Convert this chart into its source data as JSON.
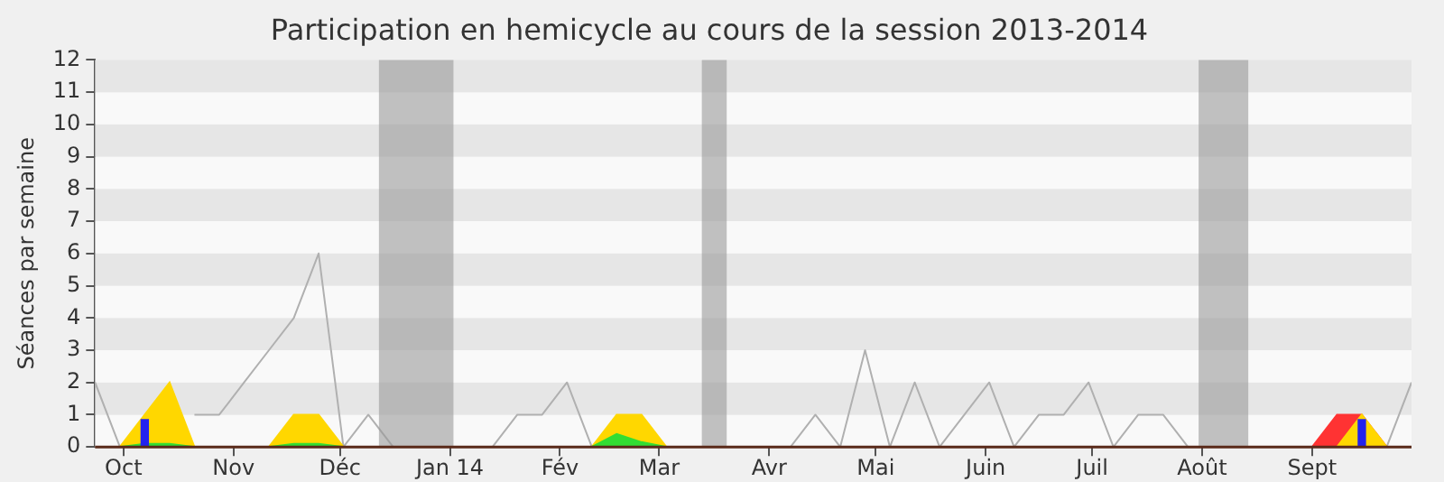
{
  "chart_data": {
    "type": "line",
    "title": "Participation en hemicycle au cours de la session 2013-2014",
    "ylabel": "Séances par semaine",
    "x": [
      "2013-09-23",
      "2013-09-30",
      "2013-10-07",
      "2013-10-14",
      "2013-10-21",
      "2013-10-28",
      "2013-11-04",
      "2013-11-11",
      "2013-11-18",
      "2013-11-25",
      "2013-12-02",
      "2013-12-09",
      "2013-12-16",
      "2013-12-23",
      "2013-12-30",
      "2014-01-06",
      "2014-01-13",
      "2014-01-20",
      "2014-01-27",
      "2014-02-03",
      "2014-02-10",
      "2014-02-17",
      "2014-02-24",
      "2014-03-03",
      "2014-03-10",
      "2014-03-17",
      "2014-03-24",
      "2014-03-31",
      "2014-04-07",
      "2014-04-14",
      "2014-04-21",
      "2014-04-28",
      "2014-05-05",
      "2014-05-12",
      "2014-05-19",
      "2014-05-26",
      "2014-06-02",
      "2014-06-09",
      "2014-06-16",
      "2014-06-23",
      "2014-06-30",
      "2014-07-07",
      "2014-07-14",
      "2014-07-21",
      "2014-07-28",
      "2014-08-04",
      "2014-08-11",
      "2014-08-18",
      "2014-08-25",
      "2014-09-01",
      "2014-09-08",
      "2014-09-15",
      "2014-09-22",
      "2014-09-29"
    ],
    "series": [
      {
        "color": "#b0b0b0",
        "values": [
          2,
          0,
          null,
          null,
          1,
          1,
          2,
          3,
          4,
          6,
          0,
          1,
          0,
          0,
          0,
          0,
          0,
          1,
          1,
          2,
          0,
          null,
          null,
          0,
          0,
          0,
          0,
          0,
          0,
          1,
          0,
          3,
          0,
          2,
          0,
          1,
          2,
          0,
          1,
          1,
          2,
          0,
          1,
          1,
          0,
          0,
          0,
          0,
          0,
          0,
          null,
          null,
          0,
          2
        ]
      },
      {
        "type": "area",
        "color": "#ff3333",
        "values": [
          null,
          null,
          null,
          null,
          null,
          null,
          null,
          null,
          null,
          null,
          null,
          null,
          null,
          null,
          null,
          null,
          null,
          null,
          null,
          null,
          null,
          null,
          null,
          null,
          null,
          null,
          null,
          null,
          null,
          null,
          null,
          null,
          null,
          null,
          null,
          null,
          null,
          null,
          null,
          null,
          null,
          null,
          null,
          null,
          null,
          null,
          null,
          null,
          null,
          0,
          1,
          1,
          0,
          null
        ]
      },
      {
        "type": "area",
        "color": "#ffd700",
        "values": [
          null,
          0,
          1,
          2,
          0,
          null,
          null,
          0,
          1,
          1,
          0,
          null,
          null,
          null,
          null,
          null,
          null,
          null,
          null,
          null,
          0,
          1,
          1,
          0,
          null,
          null,
          null,
          null,
          null,
          null,
          null,
          null,
          null,
          null,
          null,
          null,
          null,
          null,
          null,
          null,
          null,
          null,
          null,
          null,
          null,
          null,
          null,
          null,
          null,
          null,
          0,
          1,
          0,
          null
        ]
      },
      {
        "type": "area",
        "color": "#33dd33",
        "values": [
          null,
          0,
          0.1,
          0.1,
          0,
          null,
          null,
          0,
          0.1,
          0.1,
          0,
          null,
          null,
          null,
          null,
          null,
          null,
          null,
          null,
          null,
          0,
          0.4,
          0.15,
          0,
          null,
          null,
          null,
          null,
          null,
          null,
          null,
          null,
          null,
          null,
          null,
          null,
          null,
          null,
          null,
          null,
          null,
          null,
          null,
          null,
          null,
          null,
          null,
          null,
          null,
          null,
          null,
          null,
          null,
          null
        ]
      },
      {
        "type": "bar",
        "color": "#2222ee",
        "values": [
          null,
          null,
          0.85,
          null,
          null,
          null,
          null,
          null,
          null,
          null,
          null,
          null,
          null,
          null,
          null,
          null,
          null,
          null,
          null,
          null,
          null,
          null,
          null,
          null,
          null,
          null,
          null,
          null,
          null,
          null,
          null,
          null,
          null,
          null,
          null,
          null,
          null,
          null,
          null,
          null,
          null,
          null,
          null,
          null,
          null,
          null,
          null,
          null,
          null,
          null,
          null,
          0.85,
          null,
          null
        ]
      }
    ],
    "xlim": [
      "2013-09-23",
      "2014-09-29"
    ],
    "xticks": [
      {
        "value": "2013-10-01",
        "label": "Oct"
      },
      {
        "value": "2013-11-01",
        "label": "Nov"
      },
      {
        "value": "2013-12-01",
        "label": "Déc"
      },
      {
        "value": "2014-01-01",
        "label": "Jan 14"
      },
      {
        "value": "2014-02-01",
        "label": "Fév"
      },
      {
        "value": "2014-03-01",
        "label": "Mar"
      },
      {
        "value": "2014-04-01",
        "label": "Avr"
      },
      {
        "value": "2014-05-01",
        "label": "Mai"
      },
      {
        "value": "2014-06-01",
        "label": "Juin"
      },
      {
        "value": "2014-07-01",
        "label": "Juil"
      },
      {
        "value": "2014-08-01",
        "label": "Août"
      },
      {
        "value": "2014-09-01",
        "label": "Sept"
      }
    ],
    "ylim": [
      0,
      12
    ],
    "yticks": [
      0,
      1,
      2,
      3,
      4,
      5,
      6,
      7,
      8,
      9,
      10,
      11,
      12
    ],
    "bands": [
      {
        "axis": "x",
        "from": "2013-12-12",
        "to": "2014-01-02",
        "color": "#999999"
      },
      {
        "axis": "x",
        "from": "2014-03-13",
        "to": "2014-03-20",
        "color": "#999999"
      },
      {
        "axis": "x",
        "from": "2014-07-31",
        "to": "2014-08-14",
        "color": "#999999"
      }
    ],
    "legend": false
  }
}
